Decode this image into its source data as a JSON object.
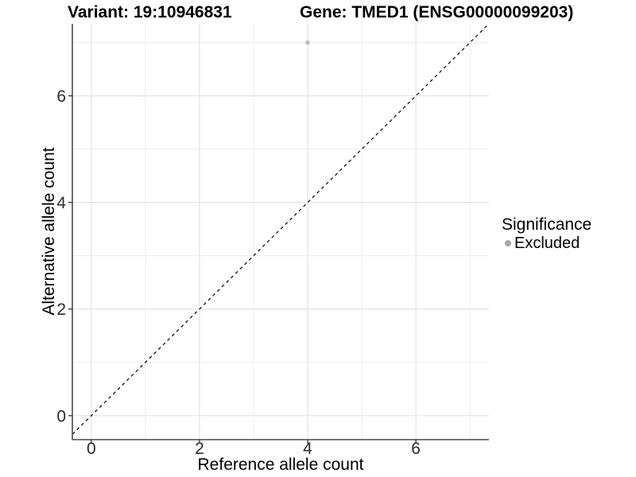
{
  "chart_data": {
    "type": "scatter",
    "title_left": "Variant: 19:10946831",
    "title_right": "Gene: TMED1 (ENSG00000099203)",
    "xlabel": "Reference allele count",
    "ylabel": "Alternative allele count",
    "x_ticks": [
      0,
      2,
      4,
      6
    ],
    "y_ticks": [
      0,
      2,
      4,
      6
    ],
    "x_grid_minor": [
      1,
      3,
      5,
      7
    ],
    "y_grid_minor": [
      1,
      3,
      5,
      7
    ],
    "xlim": [
      -0.35,
      7.35
    ],
    "ylim": [
      -0.45,
      7.35
    ],
    "grid": "on",
    "series": [
      {
        "name": "Excluded",
        "color": "#bcbcbc",
        "marker_radius": 2.8,
        "points": [
          {
            "x": 4,
            "y": 7
          }
        ]
      }
    ],
    "reference_line": {
      "type": "identity",
      "style": "dashed",
      "color": "#000000"
    },
    "legend": {
      "title": "Significance",
      "position": "right",
      "entries": [
        {
          "label": "Excluded",
          "color": "#a6a6a6"
        }
      ]
    }
  },
  "style": {
    "background": "#ffffff",
    "grid_major": "#e3e3e3",
    "grid_minor": "#ededed",
    "axis_line": "#4a4a4a",
    "tick_color": "#333333",
    "tick_text_color": "#2b2b2b"
  }
}
